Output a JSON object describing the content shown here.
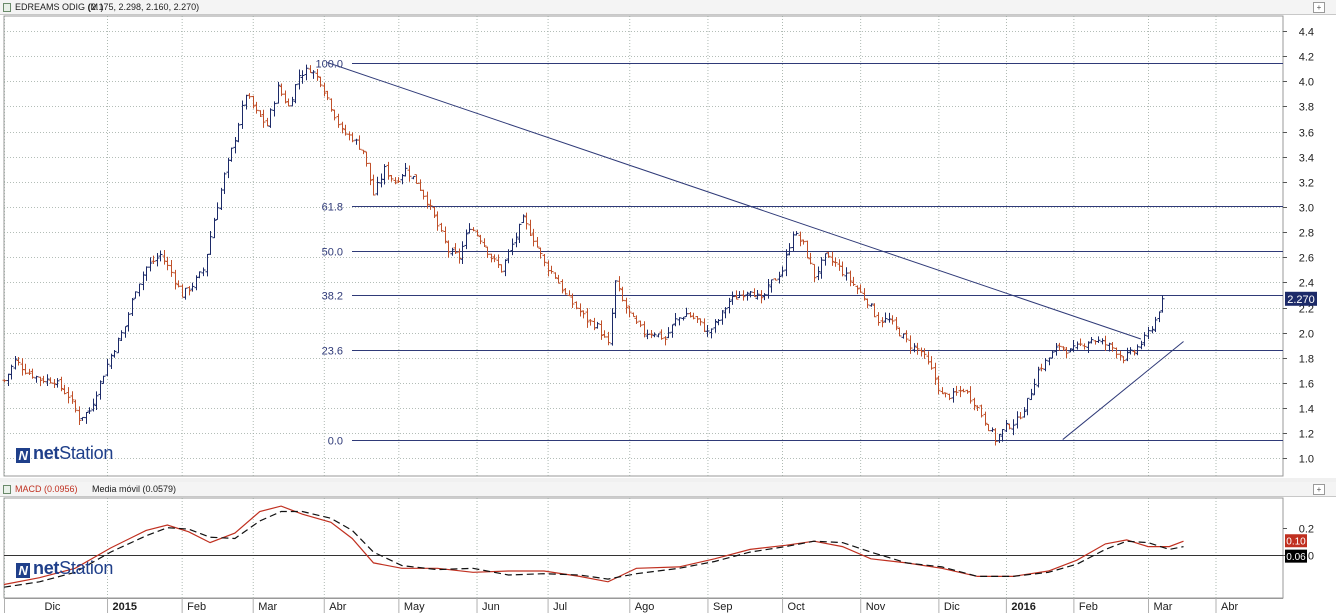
{
  "price_panel": {
    "instrument_label": "EDREAMS ODIG (M )",
    "ohlc_label": "(2.175, 2.298, 2.160, 2.270)",
    "toggle_label": "+"
  },
  "macd_panel": {
    "macd_label": "MACD (0.0956)",
    "signal_label": "Media móvil (0.0579)",
    "toggle_label": "+"
  },
  "logo": {
    "prefix": "net",
    "suffix": "Station",
    "mark": "N"
  },
  "colors": {
    "up_bar": "#1c2a68",
    "down_bar": "#c0502a",
    "fib_line": "#2f3a78",
    "trend_line": "#2f3a78",
    "macd_line": "#c03020",
    "signal_line": "#111111",
    "last_price_box": "#1c2a68"
  },
  "chart_data": [
    {
      "type": "ohlc",
      "title": "EDREAMS ODIG (M )",
      "last_bar": {
        "open": 2.175,
        "high": 2.298,
        "low": 2.16,
        "close": 2.27
      },
      "last_price_label": "2.270",
      "x_tick_labels": [
        "Dic",
        "2015",
        "Feb",
        "Mar",
        "Abr",
        "May",
        "Jun",
        "Jul",
        "Ago",
        "Sep",
        "Oct",
        "Nov",
        "Dic",
        "2016",
        "Feb",
        "Mar",
        "Abr"
      ],
      "y_ticks": [
        "1.0",
        "1.2",
        "1.4",
        "1.6",
        "1.8",
        "2.0",
        "2.2",
        "2.4",
        "2.6",
        "2.8",
        "3.0",
        "3.2",
        "3.4",
        "3.6",
        "3.8",
        "4.0",
        "4.2",
        "4.4"
      ],
      "ylim": [
        0.86,
        4.52
      ],
      "x_month_starts": [
        0,
        29,
        50,
        70,
        90,
        111,
        133,
        153,
        176,
        198,
        219,
        241,
        263,
        282,
        301,
        322,
        341
      ],
      "x_total_days": 360,
      "close_anchors": [
        [
          0,
          1.62
        ],
        [
          3,
          1.78
        ],
        [
          6,
          1.7
        ],
        [
          10,
          1.63
        ],
        [
          14,
          1.62
        ],
        [
          18,
          1.5
        ],
        [
          21,
          1.32
        ],
        [
          24,
          1.38
        ],
        [
          27,
          1.6
        ],
        [
          30,
          1.82
        ],
        [
          34,
          2.05
        ],
        [
          37,
          2.35
        ],
        [
          40,
          2.52
        ],
        [
          44,
          2.62
        ],
        [
          47,
          2.48
        ],
        [
          50,
          2.3
        ],
        [
          53,
          2.38
        ],
        [
          56,
          2.5
        ],
        [
          59,
          2.9
        ],
        [
          62,
          3.25
        ],
        [
          65,
          3.55
        ],
        [
          68,
          3.9
        ],
        [
          71,
          3.75
        ],
        [
          74,
          3.65
        ],
        [
          77,
          3.95
        ],
        [
          80,
          3.8
        ],
        [
          83,
          4.05
        ],
        [
          86,
          4.1
        ],
        [
          89,
          4.0
        ],
        [
          92,
          3.8
        ],
        [
          95,
          3.6
        ],
        [
          98,
          3.55
        ],
        [
          101,
          3.45
        ],
        [
          104,
          3.1
        ],
        [
          107,
          3.3
        ],
        [
          110,
          3.2
        ],
        [
          113,
          3.3
        ],
        [
          116,
          3.2
        ],
        [
          119,
          3.05
        ],
        [
          122,
          2.85
        ],
        [
          125,
          2.65
        ],
        [
          128,
          2.6
        ],
        [
          131,
          2.85
        ],
        [
          134,
          2.75
        ],
        [
          137,
          2.6
        ],
        [
          140,
          2.5
        ],
        [
          143,
          2.7
        ],
        [
          146,
          2.9
        ],
        [
          149,
          2.75
        ],
        [
          152,
          2.55
        ],
        [
          155,
          2.45
        ],
        [
          158,
          2.3
        ],
        [
          161,
          2.2
        ],
        [
          164,
          2.1
        ],
        [
          167,
          2.05
        ],
        [
          170,
          1.9
        ],
        [
          172,
          2.4
        ],
        [
          174,
          2.25
        ],
        [
          177,
          2.1
        ],
        [
          180,
          2.0
        ],
        [
          183,
          2.0
        ],
        [
          186,
          1.95
        ],
        [
          189,
          2.1
        ],
        [
          192,
          2.15
        ],
        [
          195,
          2.1
        ],
        [
          198,
          2.0
        ],
        [
          201,
          2.1
        ],
        [
          204,
          2.25
        ],
        [
          207,
          2.3
        ],
        [
          210,
          2.35
        ],
        [
          213,
          2.25
        ],
        [
          216,
          2.4
        ],
        [
          219,
          2.5
        ],
        [
          222,
          2.8
        ],
        [
          225,
          2.7
        ],
        [
          228,
          2.45
        ],
        [
          231,
          2.6
        ],
        [
          234,
          2.55
        ],
        [
          237,
          2.45
        ],
        [
          240,
          2.35
        ],
        [
          243,
          2.25
        ],
        [
          246,
          2.1
        ],
        [
          249,
          2.1
        ],
        [
          252,
          2.0
        ],
        [
          255,
          1.9
        ],
        [
          258,
          1.85
        ],
        [
          261,
          1.7
        ],
        [
          264,
          1.5
        ],
        [
          267,
          1.5
        ],
        [
          270,
          1.55
        ],
        [
          273,
          1.45
        ],
        [
          276,
          1.3
        ],
        [
          279,
          1.15
        ],
        [
          282,
          1.25
        ],
        [
          285,
          1.3
        ],
        [
          288,
          1.45
        ],
        [
          291,
          1.7
        ],
        [
          294,
          1.8
        ],
        [
          297,
          1.9
        ],
        [
          300,
          1.85
        ],
        [
          303,
          1.9
        ],
        [
          306,
          1.95
        ],
        [
          309,
          1.92
        ],
        [
          312,
          1.88
        ],
        [
          315,
          1.8
        ],
        [
          318,
          1.85
        ],
        [
          321,
          1.95
        ],
        [
          324,
          2.1
        ],
        [
          326,
          2.27
        ]
      ],
      "fibonacci": {
        "high": 4.15,
        "low": 1.15,
        "levels": [
          {
            "label": "100.0",
            "price": 4.15
          },
          {
            "label": "61.8",
            "price": 3.01
          },
          {
            "label": "50.0",
            "price": 2.65
          },
          {
            "label": "38.2",
            "price": 2.3
          },
          {
            "label": "23.6",
            "price": 1.86
          },
          {
            "label": "0.0",
            "price": 1.15
          }
        ]
      },
      "trendlines": [
        {
          "from": [
            91,
            4.15
          ],
          "to": [
            320,
            1.95
          ]
        },
        {
          "from": [
            298,
            1.15
          ],
          "to": [
            332,
            1.93
          ]
        }
      ]
    },
    {
      "type": "line",
      "title": "MACD (0.0956)",
      "series": [
        {
          "name": "MACD (0.0956)",
          "last_label": "0.10",
          "points": [
            [
              0,
              -0.22
            ],
            [
              10,
              -0.17
            ],
            [
              20,
              -0.1
            ],
            [
              30,
              0.05
            ],
            [
              40,
              0.18
            ],
            [
              46,
              0.22
            ],
            [
              52,
              0.17
            ],
            [
              58,
              0.09
            ],
            [
              65,
              0.16
            ],
            [
              72,
              0.32
            ],
            [
              78,
              0.36
            ],
            [
              84,
              0.3
            ],
            [
              92,
              0.24
            ],
            [
              98,
              0.12
            ],
            [
              104,
              -0.06
            ],
            [
              112,
              -0.1
            ],
            [
              122,
              -0.1
            ],
            [
              132,
              -0.13
            ],
            [
              142,
              -0.12
            ],
            [
              152,
              -0.12
            ],
            [
              162,
              -0.16
            ],
            [
              170,
              -0.2
            ],
            [
              178,
              -0.1
            ],
            [
              190,
              -0.09
            ],
            [
              200,
              -0.03
            ],
            [
              210,
              0.04
            ],
            [
              220,
              0.07
            ],
            [
              228,
              0.1
            ],
            [
              236,
              0.06
            ],
            [
              244,
              -0.03
            ],
            [
              254,
              -0.06
            ],
            [
              264,
              -0.1
            ],
            [
              274,
              -0.16
            ],
            [
              284,
              -0.16
            ],
            [
              294,
              -0.12
            ],
            [
              302,
              -0.04
            ],
            [
              310,
              0.08
            ],
            [
              316,
              0.11
            ],
            [
              322,
              0.06
            ],
            [
              328,
              0.06
            ],
            [
              332,
              0.1
            ]
          ]
        },
        {
          "name": "Media móvil (0.0579)",
          "last_label": "0.06",
          "points": [
            [
              0,
              -0.24
            ],
            [
              10,
              -0.2
            ],
            [
              20,
              -0.13
            ],
            [
              30,
              0.02
            ],
            [
              40,
              0.14
            ],
            [
              46,
              0.2
            ],
            [
              52,
              0.19
            ],
            [
              58,
              0.13
            ],
            [
              65,
              0.12
            ],
            [
              72,
              0.25
            ],
            [
              78,
              0.32
            ],
            [
              84,
              0.32
            ],
            [
              92,
              0.27
            ],
            [
              98,
              0.18
            ],
            [
              104,
              0.02
            ],
            [
              112,
              -0.08
            ],
            [
              122,
              -0.11
            ],
            [
              132,
              -0.1
            ],
            [
              142,
              -0.15
            ],
            [
              152,
              -0.14
            ],
            [
              162,
              -0.15
            ],
            [
              170,
              -0.18
            ],
            [
              178,
              -0.14
            ],
            [
              190,
              -0.1
            ],
            [
              200,
              -0.05
            ],
            [
              210,
              0.02
            ],
            [
              220,
              0.06
            ],
            [
              228,
              0.1
            ],
            [
              236,
              0.09
            ],
            [
              244,
              0.02
            ],
            [
              254,
              -0.06
            ],
            [
              264,
              -0.09
            ],
            [
              274,
              -0.16
            ],
            [
              284,
              -0.16
            ],
            [
              294,
              -0.13
            ],
            [
              302,
              -0.07
            ],
            [
              310,
              0.04
            ],
            [
              316,
              0.1
            ],
            [
              322,
              0.09
            ],
            [
              328,
              0.04
            ],
            [
              332,
              0.06
            ]
          ]
        }
      ],
      "y_ticks": [
        "0.2",
        "0.0"
      ],
      "zero_line": 0.0,
      "ylim": [
        -0.32,
        0.42
      ]
    }
  ]
}
